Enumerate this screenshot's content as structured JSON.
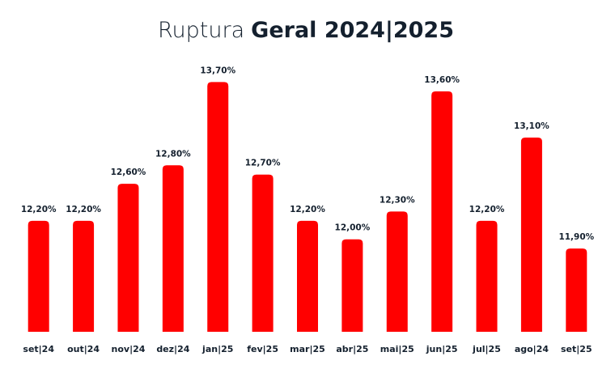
{
  "chart_data": {
    "type": "bar",
    "title": [
      "Ruptura",
      "Geral 2024|2025"
    ],
    "categories": [
      "set|24",
      "out|24",
      "nov|24",
      "dez|24",
      "jan|25",
      "fev|25",
      "mar|25",
      "abr|25",
      "mai|25",
      "jun|25",
      "jul|25",
      "ago|24",
      "set|25"
    ],
    "values": [
      12.2,
      12.2,
      12.6,
      12.8,
      13.7,
      12.7,
      12.2,
      12.0,
      12.3,
      13.6,
      12.2,
      13.1,
      11.9
    ],
    "value_labels": [
      "12,20%",
      "12,20%",
      "12,60%",
      "12,80%",
      "13,70%",
      "12,70%",
      "12,20%",
      "12,00%",
      "12,30%",
      "13,60%",
      "12,20%",
      "13,10%",
      "11,90%"
    ],
    "color": "#ff0000",
    "ylim": [
      11,
      13.8
    ]
  }
}
